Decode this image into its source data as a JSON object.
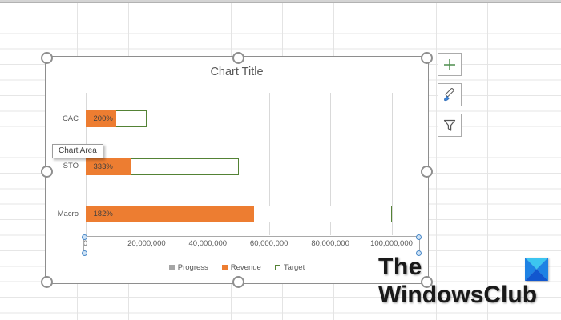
{
  "chart": {
    "title": "Chart Title",
    "tooltip": "Chart Area",
    "legend": [
      {
        "label": "Progress",
        "color": "#A5A5A5",
        "border": ""
      },
      {
        "label": "Revenue",
        "color": "#ED7D31",
        "border": ""
      },
      {
        "label": "Target",
        "color": "#FFFFFF",
        "border": "#548235"
      }
    ]
  },
  "chart_data": {
    "type": "bar",
    "orientation": "horizontal",
    "title": "Chart Title",
    "categories": [
      "CAC",
      "STO",
      "Macro"
    ],
    "series": [
      {
        "name": "Progress",
        "values": [
          2.0,
          3.33,
          1.82
        ],
        "labels": [
          "200%",
          "333%",
          "182%"
        ]
      },
      {
        "name": "Revenue",
        "values": [
          10000000,
          15000000,
          55000000
        ]
      },
      {
        "name": "Target",
        "values": [
          20000000,
          50000000,
          100000000
        ]
      }
    ],
    "xlabel": "",
    "ylabel": "",
    "xlim": [
      0,
      100000000
    ],
    "x_ticks": [
      "0",
      "20,000,000",
      "40,000,000",
      "60,000,000",
      "80,000,000",
      "100,000,000"
    ],
    "grid": true,
    "legend_position": "bottom"
  },
  "colors": {
    "revenue": "#ED7D31",
    "target_border": "#548235",
    "progress": "#A5A5A5",
    "text": "#595959",
    "data_label": "#3F3F3F"
  },
  "side_buttons": [
    {
      "name": "chart-elements"
    },
    {
      "name": "chart-styles"
    },
    {
      "name": "chart-filters"
    }
  ],
  "logo": {
    "line1": "The",
    "line2": "WindowsClub"
  }
}
